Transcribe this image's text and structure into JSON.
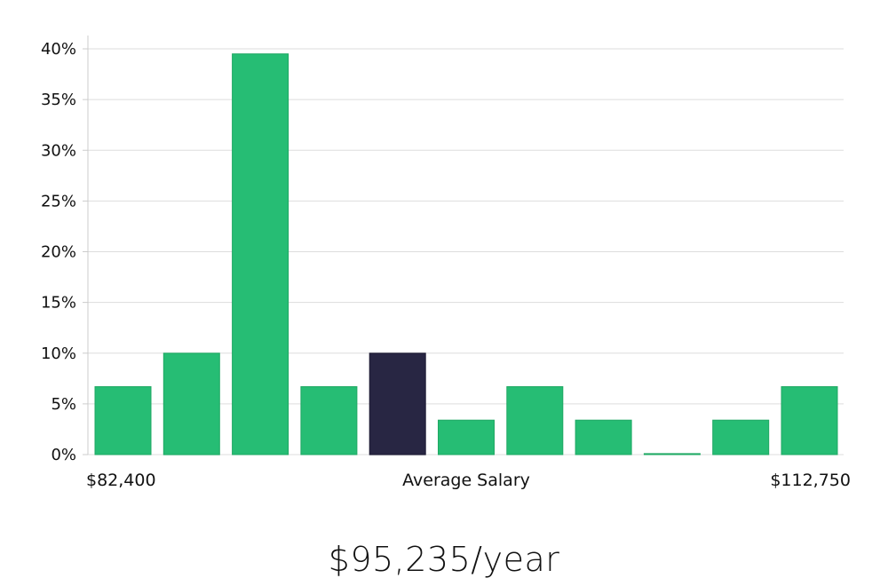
{
  "chart_data": {
    "type": "bar",
    "title": "",
    "xlabel": "Average Salary",
    "ylabel": "",
    "x_range_labels": {
      "min": "$82,400",
      "max": "$112,750"
    },
    "ylim": [
      0,
      40
    ],
    "yticks": [
      0,
      5,
      10,
      15,
      20,
      25,
      30,
      35,
      40
    ],
    "ytick_suffix": "%",
    "grid": true,
    "values": [
      6.7,
      10,
      39.5,
      6.7,
      10,
      3.4,
      6.7,
      3.4,
      0.1,
      3.4,
      6.7
    ],
    "highlight_index": 4,
    "colors": {
      "bar": "#26bd74",
      "bar_stroke": "#1fa863",
      "highlight": "#282643",
      "grid": "#dddddd",
      "axis": "#cccccc"
    }
  },
  "summary": {
    "salary_text": "$95,235/year"
  }
}
